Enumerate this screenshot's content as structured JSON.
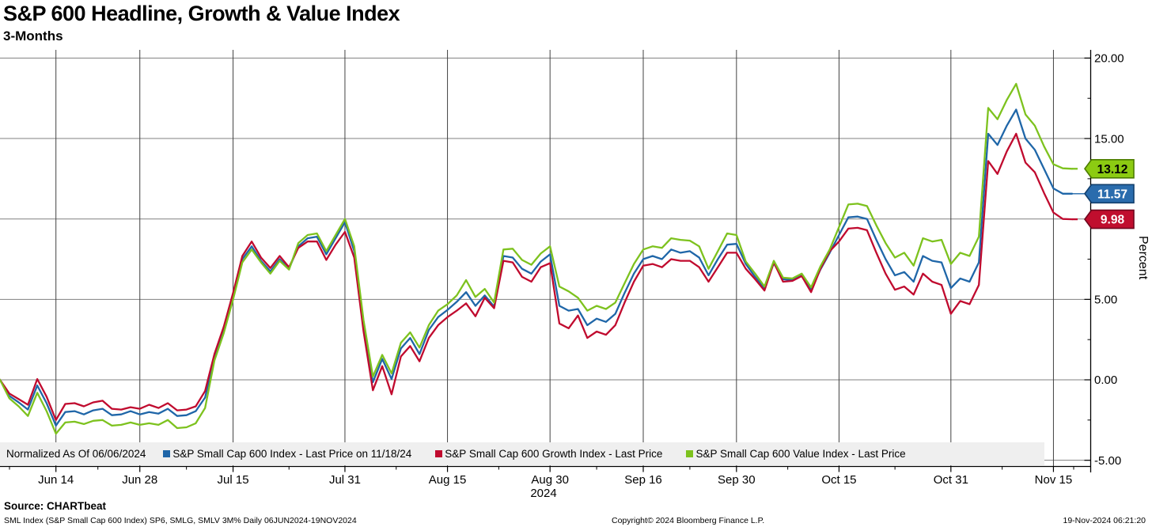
{
  "header": {
    "title": "S&P 600 Headline, Growth & Value Index",
    "subtitle": "3-Months"
  },
  "chart_data": {
    "type": "line",
    "title": "S&P 600 Headline, Growth & Value Index",
    "subtitle": "3-Months",
    "ylabel": "Percent",
    "year_label": "2024",
    "normalized_note": "Normalized As Of 06/06/2024",
    "grid": true,
    "ylim": [
      -5.75,
      20.6
    ],
    "y_ticks": [
      20,
      15,
      10,
      5,
      0,
      -5
    ],
    "y_tick_labels": [
      "20.00",
      "15.00",
      "10.00",
      "5.00",
      "0.00",
      "-5.00"
    ],
    "y_minor_ticks": [
      17.5,
      12.5,
      7.5,
      2.5,
      -2.5
    ],
    "x_tick_labels": [
      "Jun 14",
      "Jun 28",
      "Jul 15",
      "Jul 31",
      "Aug 15",
      "Aug 30",
      "Sep 16",
      "Sep 30",
      "Oct 15",
      "Oct 31",
      "Nov 15"
    ],
    "x_tick_day_index": [
      6,
      15,
      25,
      37,
      48,
      59,
      69,
      79,
      90,
      102,
      113
    ],
    "dates": [
      "06/06",
      "06/07",
      "06/10",
      "06/11",
      "06/12",
      "06/13",
      "06/14",
      "06/17",
      "06/18",
      "06/20",
      "06/21",
      "06/24",
      "06/25",
      "06/26",
      "06/27",
      "06/28",
      "07/01",
      "07/02",
      "07/03",
      "07/05",
      "07/08",
      "07/09",
      "07/10",
      "07/11",
      "07/12",
      "07/15",
      "07/16",
      "07/17",
      "07/18",
      "07/19",
      "07/22",
      "07/23",
      "07/24",
      "07/25",
      "07/26",
      "07/29",
      "07/30",
      "07/31",
      "08/01",
      "08/02",
      "08/05",
      "08/06",
      "08/07",
      "08/08",
      "08/09",
      "08/12",
      "08/13",
      "08/14",
      "08/15",
      "08/16",
      "08/19",
      "08/20",
      "08/21",
      "08/22",
      "08/23",
      "08/26",
      "08/27",
      "08/28",
      "08/29",
      "08/30",
      "09/03",
      "09/04",
      "09/05",
      "09/06",
      "09/09",
      "09/10",
      "09/11",
      "09/12",
      "09/13",
      "09/16",
      "09/17",
      "09/18",
      "09/19",
      "09/20",
      "09/23",
      "09/24",
      "09/25",
      "09/26",
      "09/27",
      "09/30",
      "10/01",
      "10/02",
      "10/03",
      "10/04",
      "10/07",
      "10/08",
      "10/09",
      "10/10",
      "10/11",
      "10/14",
      "10/15",
      "10/16",
      "10/17",
      "10/18",
      "10/21",
      "10/22",
      "10/23",
      "10/24",
      "10/25",
      "10/28",
      "10/29",
      "10/30",
      "10/31",
      "11/01",
      "11/04",
      "11/05",
      "11/06",
      "11/07",
      "11/08",
      "11/11",
      "11/12",
      "11/13",
      "11/14",
      "11/15",
      "11/18",
      "11/19"
    ],
    "series": [
      {
        "name": "S&P Small Cap 600 Index - Last Price on 11/18/24",
        "key": "index",
        "color": "#1f66a8",
        "last_value": 11.57,
        "values": [
          0.0,
          -1.0,
          -1.4,
          -1.85,
          -0.35,
          -1.45,
          -2.85,
          -2.0,
          -1.95,
          -2.15,
          -1.9,
          -1.8,
          -2.2,
          -2.15,
          -1.95,
          -2.15,
          -2.0,
          -2.1,
          -1.8,
          -2.25,
          -2.2,
          -1.95,
          -1.1,
          1.4,
          3.1,
          5.2,
          7.5,
          8.3,
          7.4,
          6.75,
          7.5,
          6.9,
          8.3,
          8.8,
          8.9,
          7.8,
          8.8,
          9.8,
          8.0,
          3.4,
          -0.15,
          1.3,
          0.05,
          1.95,
          2.6,
          1.6,
          3.1,
          3.9,
          4.35,
          4.85,
          5.45,
          4.6,
          5.25,
          4.55,
          7.7,
          7.6,
          6.9,
          6.6,
          7.35,
          7.8,
          4.6,
          4.3,
          4.4,
          3.4,
          3.8,
          3.6,
          4.1,
          5.4,
          6.6,
          7.5,
          7.7,
          7.5,
          8.1,
          7.9,
          8.0,
          7.6,
          6.5,
          7.5,
          8.4,
          8.45,
          7.2,
          6.4,
          5.7,
          7.25,
          6.25,
          6.2,
          6.5,
          5.6,
          6.85,
          7.9,
          9.0,
          10.1,
          10.15,
          10.0,
          8.7,
          7.5,
          6.5,
          6.7,
          6.1,
          7.7,
          7.4,
          7.3,
          5.7,
          6.3,
          6.1,
          7.3,
          15.3,
          14.6,
          15.8,
          16.8,
          15.0,
          14.3,
          13.1,
          11.9,
          11.57,
          11.57
        ]
      },
      {
        "name": "S&P Small Cap 600 Growth Index - Last Price",
        "key": "growth",
        "color": "#c00a2e",
        "last_value": 9.98,
        "values": [
          0.0,
          -0.85,
          -1.2,
          -1.55,
          0.05,
          -1.05,
          -2.5,
          -1.5,
          -1.45,
          -1.65,
          -1.4,
          -1.3,
          -1.8,
          -1.85,
          -1.7,
          -1.8,
          -1.55,
          -1.75,
          -1.45,
          -1.9,
          -1.85,
          -1.65,
          -0.7,
          1.6,
          3.3,
          5.4,
          7.7,
          8.6,
          7.6,
          6.95,
          7.7,
          7.0,
          8.2,
          8.6,
          8.6,
          7.45,
          8.4,
          9.2,
          7.6,
          3.0,
          -0.65,
          0.85,
          -0.9,
          1.45,
          2.1,
          1.15,
          2.6,
          3.4,
          3.9,
          4.3,
          4.75,
          3.95,
          5.1,
          4.45,
          7.4,
          7.3,
          6.4,
          6.1,
          7.0,
          7.25,
          3.5,
          3.2,
          4.0,
          2.6,
          3.0,
          2.8,
          3.4,
          4.8,
          6.1,
          7.1,
          7.2,
          7.0,
          7.5,
          7.4,
          7.4,
          7.0,
          6.1,
          7.0,
          7.9,
          7.9,
          6.9,
          6.25,
          5.55,
          7.3,
          6.1,
          6.15,
          6.45,
          5.45,
          6.9,
          8.0,
          8.6,
          9.4,
          9.45,
          9.3,
          7.9,
          6.6,
          5.6,
          5.8,
          5.3,
          6.6,
          6.1,
          5.9,
          4.1,
          4.9,
          4.7,
          5.9,
          13.6,
          12.8,
          14.2,
          15.3,
          13.5,
          12.9,
          11.6,
          10.4,
          10.0,
          9.98
        ]
      },
      {
        "name": "S&P Small Cap 600 Value Index - Last Price",
        "key": "value",
        "color": "#7dc21e",
        "last_value": 13.12,
        "values": [
          0.0,
          -1.15,
          -1.65,
          -2.25,
          -0.8,
          -1.95,
          -3.35,
          -2.65,
          -2.6,
          -2.75,
          -2.55,
          -2.5,
          -2.85,
          -2.8,
          -2.65,
          -2.8,
          -2.7,
          -2.8,
          -2.5,
          -3.0,
          -2.95,
          -2.7,
          -1.75,
          1.2,
          2.9,
          5.0,
          7.3,
          8.1,
          7.3,
          6.6,
          7.4,
          6.85,
          8.5,
          9.0,
          9.1,
          8.0,
          9.0,
          10.0,
          8.3,
          3.7,
          0.2,
          1.55,
          0.4,
          2.3,
          2.95,
          2.0,
          3.4,
          4.3,
          4.7,
          5.25,
          6.2,
          5.15,
          5.65,
          4.8,
          8.1,
          8.15,
          7.45,
          7.15,
          7.85,
          8.3,
          5.8,
          5.5,
          5.1,
          4.3,
          4.6,
          4.4,
          4.8,
          6.0,
          7.2,
          8.1,
          8.3,
          8.2,
          8.8,
          8.7,
          8.65,
          8.3,
          6.9,
          8.0,
          9.1,
          9.0,
          7.35,
          6.6,
          5.8,
          7.4,
          6.35,
          6.3,
          6.6,
          5.75,
          7.05,
          8.1,
          9.5,
          10.9,
          10.95,
          10.8,
          9.6,
          8.5,
          7.6,
          7.9,
          7.1,
          8.8,
          8.6,
          8.7,
          7.2,
          7.9,
          7.7,
          8.9,
          16.9,
          16.2,
          17.4,
          18.4,
          16.5,
          15.8,
          14.5,
          13.4,
          13.15,
          13.12
        ]
      }
    ],
    "badges": [
      {
        "value": "13.12",
        "num": 13.12,
        "fill": "#8ccb12",
        "border": "#4c7c00",
        "text_color": "#000000"
      },
      {
        "value": "11.57",
        "num": 11.57,
        "fill": "#2a6cad",
        "border": "#123f6d",
        "text_color": "#ffffff"
      },
      {
        "value": "9.98",
        "num": 9.98,
        "fill": "#c00e2e",
        "border": "#70081f",
        "text_color": "#ffffff"
      }
    ],
    "legend_position": "bottom"
  },
  "legend": {
    "items": [
      {
        "key": "normalized-note",
        "label": "Normalized As Of 06/06/2024",
        "color": null
      },
      {
        "key": "index-series",
        "label": "S&P Small Cap 600 Index - Last Price on 11/18/24",
        "color": "#1f66a8"
      },
      {
        "key": "growth-series",
        "label": "S&P Small Cap 600 Growth Index - Last Price",
        "color": "#c00a2e"
      },
      {
        "key": "value-series",
        "label": "S&P Small Cap 600 Value Index - Last Price",
        "color": "#7dc21e"
      }
    ]
  },
  "footer": {
    "source": "Source: CHARTbeat",
    "details": "SML Index (S&P Small Cap 600 Index) SP6, SMLG, SMLV 3M%  Daily 06JUN2024-19NOV2024",
    "copyright": "Copyright© 2024 Bloomberg Finance L.P.",
    "timestamp": "19-Nov-2024 06:21:20"
  }
}
